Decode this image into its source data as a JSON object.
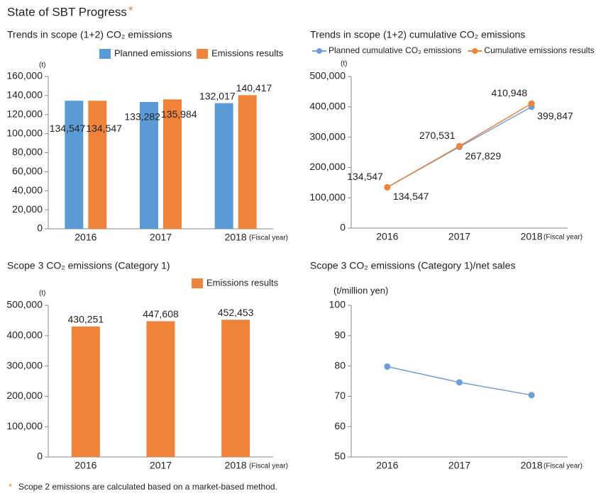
{
  "title": "State of SBT Progress",
  "title_mark": "*",
  "footnote_mark": "*",
  "footnote": "Scope 2 emissions are calculated based on a market-based method.",
  "chart_data": [
    {
      "type": "bar",
      "title": "Trends in scope (1+2) CO₂ emissions",
      "y_label": "(t)",
      "x_label": "(Fiscal year)",
      "categories": [
        "2016",
        "2017",
        "2018"
      ],
      "series": [
        {
          "name": "Planned emissions",
          "color": "#5b9bd5",
          "values": [
            134547,
            133282,
            132017
          ],
          "value_labels": [
            "134,547",
            "133,282",
            "132,017"
          ]
        },
        {
          "name": "Emissions results",
          "color": "#f0833a",
          "values": [
            134547,
            135984,
            140417
          ],
          "value_labels": [
            "134,547",
            "135,984",
            "140,417"
          ]
        }
      ],
      "ylim": [
        0,
        160000
      ],
      "yticks": [
        0,
        {
          "value": 20000,
          "label": "20,000"
        },
        {
          "value": 40000,
          "label": "40,000"
        },
        {
          "value": 60000,
          "label": "60,000"
        },
        {
          "value": 80000,
          "label": "80,000"
        },
        {
          "value": 100000,
          "label": "100,000"
        },
        {
          "value": 120000,
          "label": "120,000"
        },
        {
          "value": 140000,
          "label": "140,000"
        },
        {
          "value": 160000,
          "label": "160,000"
        }
      ],
      "legend": "top-right",
      "grid": false
    },
    {
      "type": "line",
      "title": "Trends in scope (1+2) cumulative CO₂ emissions",
      "y_label": "(t)",
      "x_label": "(Fiscal year)",
      "categories": [
        "2016",
        "2017",
        "2018"
      ],
      "series": [
        {
          "name": "Planned cumulative CO₂ emissions",
          "color": "#6f9fd8",
          "values": [
            134547,
            267829,
            399847
          ],
          "value_labels": [
            "134,547",
            "267,829",
            "399,847"
          ]
        },
        {
          "name": "Cumulative emissions results",
          "color": "#f0833a",
          "values": [
            134547,
            270531,
            410948
          ],
          "value_labels": [
            "134,547",
            "270,531",
            "410,948"
          ]
        }
      ],
      "ylim": [
        0,
        500000
      ],
      "yticks": [
        0,
        {
          "value": 100000,
          "label": "100,000"
        },
        {
          "value": 200000,
          "label": "200,000"
        },
        {
          "value": 300000,
          "label": "300,000"
        },
        {
          "value": 400000,
          "label": "400,000"
        },
        {
          "value": 500000,
          "label": "500,000"
        }
      ],
      "legend": "top",
      "grid": false
    },
    {
      "type": "bar",
      "title": "Scope 3 CO₂ emissions (Category 1)",
      "y_label": "(t)",
      "x_label": "(Fiscal year)",
      "categories": [
        "2016",
        "2017",
        "2018"
      ],
      "series": [
        {
          "name": "Emissions results",
          "color": "#f0833a",
          "values": [
            430251,
            447608,
            452453
          ],
          "value_labels": [
            "430,251",
            "447,608",
            "452,453"
          ]
        }
      ],
      "ylim": [
        0,
        500000
      ],
      "yticks": [
        0,
        {
          "value": 100000,
          "label": "100,000"
        },
        {
          "value": 200000,
          "label": "200,000"
        },
        {
          "value": 300000,
          "label": "300,000"
        },
        {
          "value": 400000,
          "label": "400,000"
        },
        {
          "value": 500000,
          "label": "500,000"
        }
      ],
      "legend": "top-right",
      "grid": false
    },
    {
      "type": "line",
      "title": "Scope 3 CO₂ emissions (Category 1)/net sales",
      "y_label": "(t/million yen)",
      "x_label": "(Fiscal year)",
      "categories": [
        "2016",
        "2017",
        "2018"
      ],
      "values": [
        79.8,
        74.6,
        70.4
      ],
      "color": "#6f9fd8",
      "ylim": [
        50,
        100
      ],
      "yticks": [
        50,
        60,
        70,
        80,
        90,
        100
      ],
      "grid": false
    }
  ]
}
